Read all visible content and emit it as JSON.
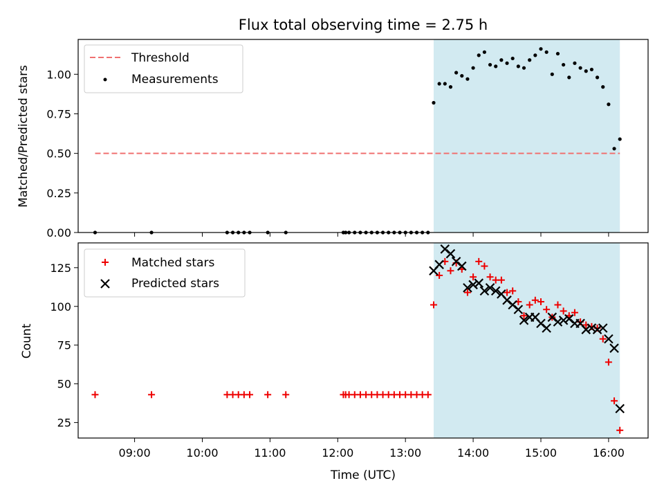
{
  "colors": {
    "shade": "#add8e6",
    "threshold": "#f07070",
    "measurement": "#000000",
    "matched": "#ee0000",
    "predicted": "#000000"
  },
  "chart_data": [
    {
      "type": "scatter",
      "title": "Flux total observing time = 2.75 h",
      "xlabel": "",
      "ylabel": "Matched/Predicted stars",
      "xlim": [
        "08:10",
        "16:35"
      ],
      "ylim": [
        0.0,
        1.22
      ],
      "yticks": [
        0.0,
        0.25,
        0.5,
        0.75,
        1.0
      ],
      "ytick_labels": [
        "0.00",
        "0.25",
        "0.50",
        "0.75",
        "1.00"
      ],
      "xticks": [
        "09:00",
        "10:00",
        "11:00",
        "12:00",
        "13:00",
        "14:00",
        "15:00",
        "16:00"
      ],
      "legend_position": "top-left",
      "shaded_region": [
        "13:25",
        "16:10"
      ],
      "series": [
        {
          "name": "Threshold",
          "kind": "line",
          "x": [
            "08:25",
            "16:10"
          ],
          "values": [
            0.5,
            0.5
          ]
        },
        {
          "name": "Measurements",
          "kind": "points",
          "x": [
            "08:25",
            "09:15",
            "10:22",
            "10:27",
            "10:32",
            "10:37",
            "10:42",
            "10:58",
            "11:14",
            "12:05",
            "12:07",
            "12:10",
            "12:15",
            "12:20",
            "12:25",
            "12:30",
            "12:35",
            "12:40",
            "12:45",
            "12:50",
            "12:55",
            "13:00",
            "13:05",
            "13:10",
            "13:15",
            "13:20",
            "13:25",
            "13:30",
            "13:35",
            "13:40",
            "13:45",
            "13:50",
            "13:55",
            "14:00",
            "14:05",
            "14:10",
            "14:15",
            "14:20",
            "14:25",
            "14:30",
            "14:35",
            "14:40",
            "14:45",
            "14:50",
            "14:55",
            "15:00",
            "15:05",
            "15:10",
            "15:15",
            "15:20",
            "15:25",
            "15:30",
            "15:35",
            "15:40",
            "15:45",
            "15:50",
            "15:55",
            "16:00",
            "16:05",
            "16:10"
          ],
          "values": [
            0,
            0,
            0,
            0,
            0,
            0,
            0,
            0,
            0,
            0,
            0,
            0,
            0,
            0,
            0,
            0,
            0,
            0,
            0,
            0,
            0,
            0,
            0,
            0,
            0,
            0,
            0.82,
            0.94,
            0.94,
            0.92,
            1.01,
            0.99,
            0.97,
            1.04,
            1.12,
            1.14,
            1.06,
            1.05,
            1.09,
            1.07,
            1.1,
            1.05,
            1.04,
            1.09,
            1.12,
            1.16,
            1.14,
            1.0,
            1.13,
            1.06,
            0.98,
            1.07,
            1.04,
            1.02,
            1.03,
            0.98,
            0.92,
            0.81,
            0.53,
            0.59
          ]
        }
      ]
    },
    {
      "type": "scatter",
      "title": "",
      "xlabel": "Time (UTC)",
      "ylabel": "Count",
      "xlim": [
        "08:10",
        "16:35"
      ],
      "ylim": [
        15,
        141
      ],
      "yticks": [
        25,
        50,
        75,
        100,
        125
      ],
      "ytick_labels": [
        "25",
        "50",
        "75",
        "100",
        "125"
      ],
      "xticks": [
        "09:00",
        "10:00",
        "11:00",
        "12:00",
        "13:00",
        "14:00",
        "15:00",
        "16:00"
      ],
      "xtick_labels": [
        "09:00",
        "10:00",
        "11:00",
        "12:00",
        "13:00",
        "14:00",
        "15:00",
        "16:00"
      ],
      "legend_position": "top-left",
      "shaded_region": [
        "13:25",
        "16:10"
      ],
      "series": [
        {
          "name": "Matched stars",
          "marker": "plus",
          "x": [
            "08:25",
            "09:15",
            "10:22",
            "10:27",
            "10:32",
            "10:37",
            "10:42",
            "10:58",
            "11:14",
            "12:05",
            "12:07",
            "12:10",
            "12:15",
            "12:20",
            "12:25",
            "12:30",
            "12:35",
            "12:40",
            "12:45",
            "12:50",
            "12:55",
            "13:00",
            "13:05",
            "13:10",
            "13:15",
            "13:20",
            "13:25",
            "13:30",
            "13:35",
            "13:40",
            "13:45",
            "13:50",
            "13:55",
            "14:00",
            "14:05",
            "14:10",
            "14:15",
            "14:20",
            "14:25",
            "14:30",
            "14:35",
            "14:40",
            "14:45",
            "14:50",
            "14:55",
            "15:00",
            "15:05",
            "15:10",
            "15:15",
            "15:20",
            "15:25",
            "15:30",
            "15:35",
            "15:40",
            "15:45",
            "15:50",
            "15:55",
            "16:00",
            "16:05",
            "16:10"
          ],
          "values": [
            43,
            43,
            43,
            43,
            43,
            43,
            43,
            43,
            43,
            43,
            43,
            43,
            43,
            43,
            43,
            43,
            43,
            43,
            43,
            43,
            43,
            43,
            43,
            43,
            43,
            43,
            101,
            120,
            129,
            123,
            128,
            124,
            109,
            119,
            129,
            126,
            119,
            117,
            117,
            109,
            110,
            103,
            94,
            101,
            104,
            103,
            98,
            93,
            101,
            97,
            94,
            96,
            90,
            88,
            87,
            86,
            79,
            64,
            39,
            20
          ]
        },
        {
          "name": "Predicted stars",
          "marker": "x",
          "x": [
            "13:25",
            "13:30",
            "13:35",
            "13:40",
            "13:45",
            "13:50",
            "13:55",
            "14:00",
            "14:05",
            "14:10",
            "14:15",
            "14:20",
            "14:25",
            "14:30",
            "14:35",
            "14:40",
            "14:45",
            "14:50",
            "14:55",
            "15:00",
            "15:05",
            "15:10",
            "15:15",
            "15:20",
            "15:25",
            "15:30",
            "15:35",
            "15:40",
            "15:45",
            "15:50",
            "15:55",
            "16:00",
            "16:05",
            "16:10"
          ],
          "values": [
            123,
            127,
            137,
            134,
            129,
            126,
            112,
            114,
            115,
            110,
            112,
            110,
            108,
            104,
            101,
            98,
            91,
            93,
            93,
            89,
            86,
            93,
            90,
            91,
            92,
            89,
            89,
            85,
            86,
            85,
            86,
            79,
            73,
            34
          ]
        }
      ]
    }
  ]
}
